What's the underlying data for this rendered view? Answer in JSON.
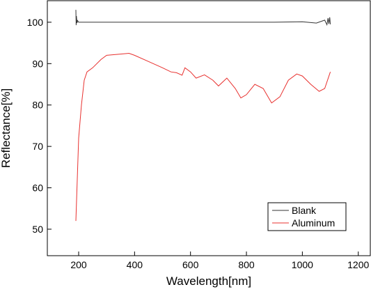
{
  "chart_data": {
    "type": "line",
    "xlabel": "Wavelength[nm]",
    "ylabel": "Reflectance[%]",
    "xlim": [
      88,
      1243
    ],
    "ylim": [
      43.6,
      105.2
    ],
    "xticks": [
      200,
      400,
      600,
      800,
      1000,
      1200
    ],
    "yticks": [
      50,
      60,
      70,
      80,
      90,
      100
    ],
    "legend": "lower right",
    "series": [
      {
        "name": "Blank",
        "color": "#333333",
        "x": [
          190,
          191,
          192,
          194,
          196,
          200,
          300,
          400,
          500,
          600,
          700,
          800,
          900,
          1000,
          1050,
          1080,
          1088,
          1092,
          1095,
          1098,
          1100
        ],
        "values": [
          103,
          99.3,
          101.5,
          99.8,
          100.4,
          100,
          100,
          100,
          100,
          100,
          100,
          100,
          100,
          100.1,
          99.8,
          100.5,
          99.4,
          101,
          99.6,
          101.2,
          99.5
        ]
      },
      {
        "name": "Aluminum",
        "color": "#e8312f",
        "x": [
          190,
          195,
          200,
          210,
          220,
          230,
          250,
          280,
          300,
          350,
          380,
          400,
          450,
          500,
          530,
          550,
          570,
          580,
          600,
          620,
          650,
          680,
          700,
          730,
          760,
          780,
          800,
          830,
          860,
          890,
          920,
          950,
          980,
          1000,
          1030,
          1060,
          1080,
          1100
        ],
        "values": [
          52,
          62,
          72,
          80,
          86,
          88,
          89,
          91,
          92,
          92.3,
          92.5,
          92,
          90.5,
          89,
          88,
          87.8,
          87.2,
          89,
          88,
          86.5,
          87.3,
          86,
          84.6,
          86.5,
          84,
          81.7,
          82.5,
          85,
          84,
          80.5,
          82,
          86,
          87.5,
          87,
          85,
          83.3,
          84,
          88
        ]
      }
    ]
  }
}
